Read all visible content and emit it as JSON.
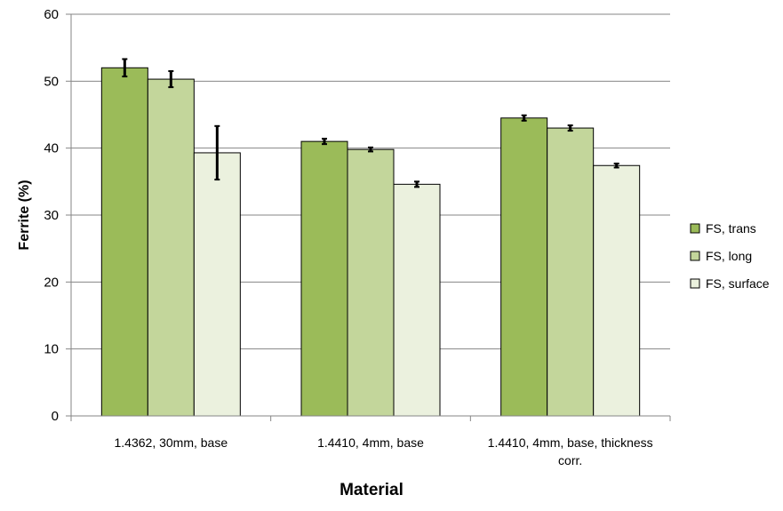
{
  "chart_data": {
    "type": "bar",
    "title": "",
    "xlabel": "Material",
    "ylabel": "Ferrite (%)",
    "ylim": [
      0,
      60
    ],
    "yticks": [
      0,
      10,
      20,
      30,
      40,
      50,
      60
    ],
    "grid": true,
    "legend_position": "right",
    "categories": [
      [
        "1.4362, 30mm, base"
      ],
      [
        "1.4410, 4mm, base"
      ],
      [
        "1.4410, 4mm, base, thickness",
        "corr."
      ]
    ],
    "series": [
      {
        "name": "FS, trans",
        "color": "#9bbb59",
        "values": [
          52.0,
          41.0,
          44.5
        ],
        "errors": [
          1.3,
          0.4,
          0.4
        ]
      },
      {
        "name": "FS, long",
        "color": "#c3d69b",
        "values": [
          50.3,
          39.8,
          43.0
        ],
        "errors": [
          1.2,
          0.3,
          0.4
        ]
      },
      {
        "name": "FS, surface",
        "color": "#ebf1de",
        "values": [
          39.3,
          34.6,
          37.4
        ],
        "errors": [
          4.0,
          0.4,
          0.3
        ]
      }
    ]
  }
}
